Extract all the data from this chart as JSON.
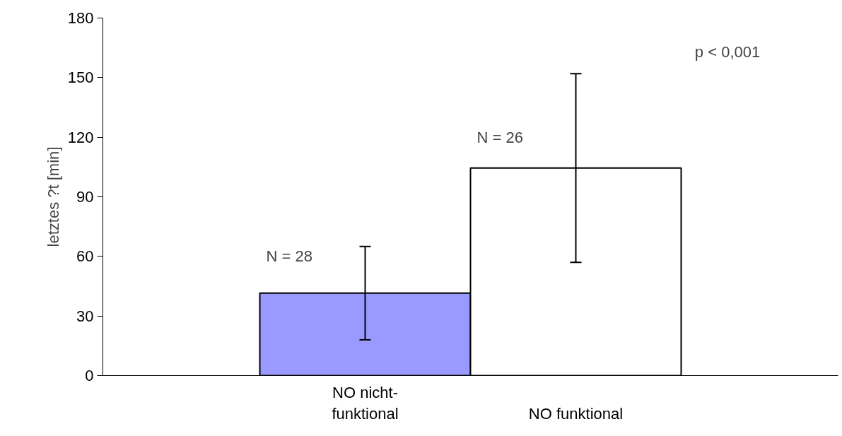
{
  "chart_data": {
    "type": "bar",
    "ylabel": "letztes ?t [min]",
    "categories": [
      "NO nicht-\nfunktional",
      "NO funktional"
    ],
    "values": [
      41.5,
      104.5
    ],
    "colors": [
      "#9999ff",
      "#ffffff"
    ],
    "errors": [
      [
        18,
        65
      ],
      [
        57,
        152
      ]
    ],
    "ylim": [
      0,
      180
    ],
    "yticks": [
      0,
      30,
      60,
      90,
      120,
      150,
      180
    ],
    "grid": false,
    "annotations": [
      "N = 28",
      "N = 26",
      "p < 0,001"
    ]
  }
}
